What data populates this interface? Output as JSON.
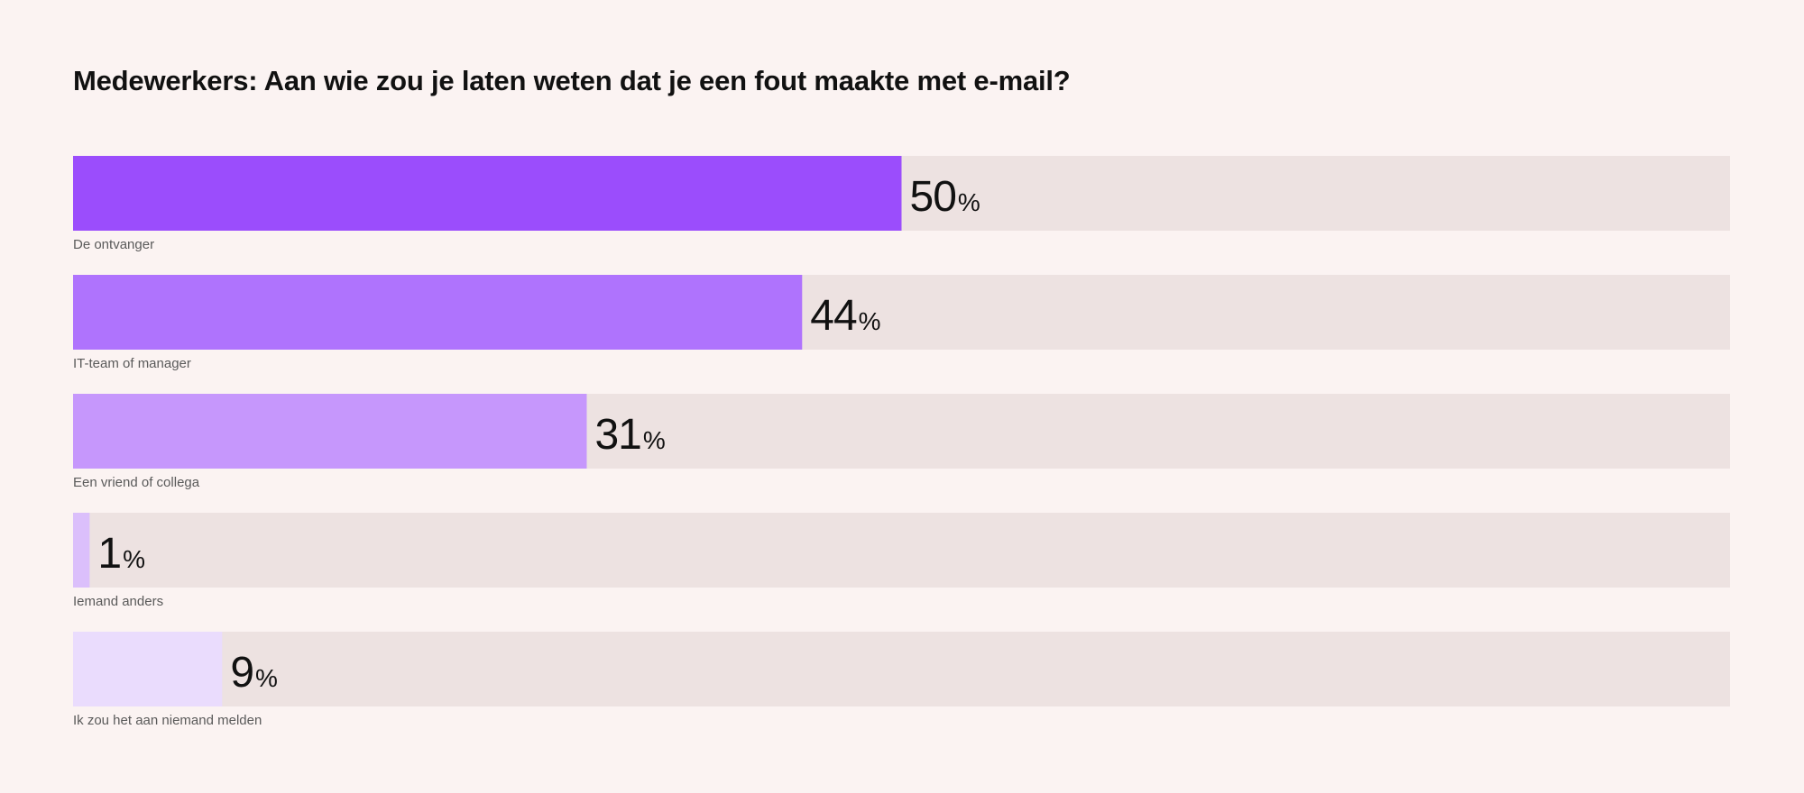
{
  "chart_data": {
    "type": "bar",
    "orientation": "horizontal",
    "title": "Medewerkers: Aan wie zou je laten weten dat je een fout maakte met e-mail?",
    "categories": [
      "De ontvanger",
      "IT-team of manager",
      "Een vriend of collega",
      "Iemand anders",
      "Ik zou het aan niemand melden"
    ],
    "values": [
      50,
      44,
      31,
      1,
      9
    ],
    "value_suffix": "%",
    "xlim": [
      0,
      100
    ],
    "grid": false,
    "legend": "none",
    "colors": [
      "#9b4dfc",
      "#af73fd",
      "#c697fc",
      "#dbbffb",
      "#eadcfd"
    ],
    "track_color": "#ede2e1",
    "background_color": "#fbf3f2"
  }
}
